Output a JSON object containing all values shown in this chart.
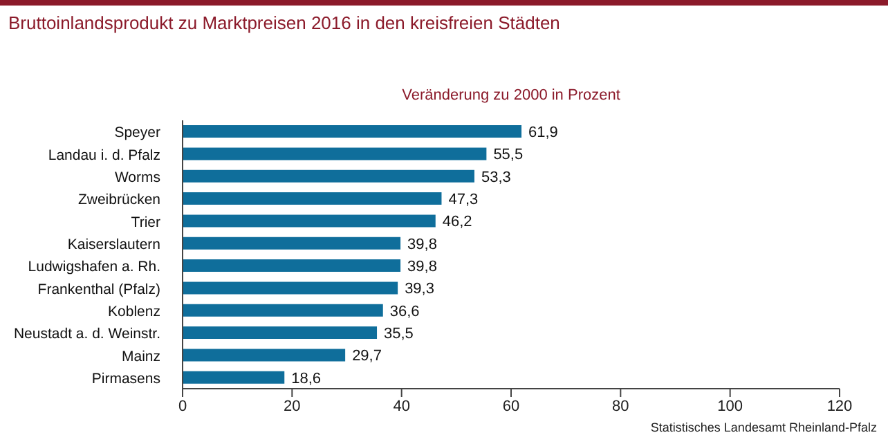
{
  "chart_data": {
    "type": "bar",
    "orientation": "horizontal",
    "title": "Bruttoinlandsprodukt zu Marktpreisen 2016 in den kreisfreien Städten",
    "subtitle": "Veränderung zu 2000 in Prozent",
    "categories": [
      "Speyer",
      "Landau i. d. Pfalz",
      "Worms",
      "Zweibrücken",
      "Trier",
      "Kaiserslautern",
      "Ludwigshafen a. Rh.",
      "Frankenthal (Pfalz)",
      "Koblenz",
      "Neustadt a. d. Weinstr.",
      "Mainz",
      "Pirmasens"
    ],
    "values": [
      61.9,
      55.5,
      53.3,
      47.3,
      46.2,
      39.8,
      39.8,
      39.3,
      36.6,
      35.5,
      29.7,
      18.6
    ],
    "value_labels": [
      "61,9",
      "55,5",
      "53,3",
      "47,3",
      "46,2",
      "39,8",
      "39,8",
      "39,3",
      "36,6",
      "35,5",
      "29,7",
      "18,6"
    ],
    "color": "#0f6e9b",
    "xlim": [
      0,
      120
    ],
    "xticks": [
      0,
      20,
      40,
      60,
      80,
      100,
      120
    ],
    "grid": false,
    "annotations": [
      "Statistisches Landesamt Rheinland-Pfalz"
    ]
  }
}
